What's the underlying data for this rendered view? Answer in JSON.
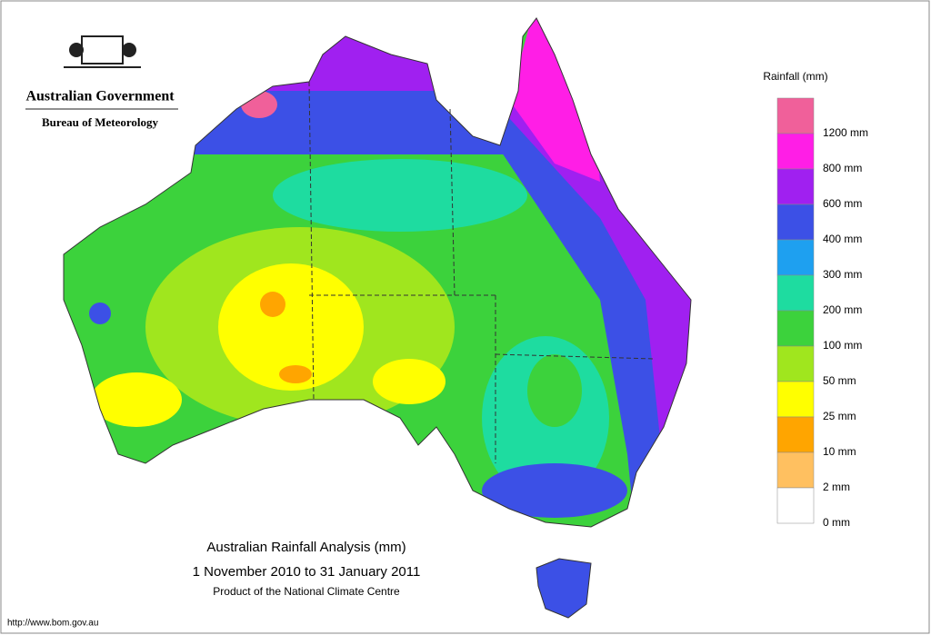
{
  "header": {
    "agency": "Australian Government",
    "bureau": "Bureau of Meteorology"
  },
  "legend": {
    "title": "Rainfall (mm)",
    "colors": [
      "#f0609a",
      "#ff1ee6",
      "#a020f0",
      "#3c50e6",
      "#1ea0f0",
      "#1edca0",
      "#3cd23c",
      "#a0e61e",
      "#ffff00",
      "#ffa500",
      "#ffc060",
      "#ffffff"
    ],
    "labels": [
      "1200 mm",
      "800 mm",
      "600 mm",
      "400 mm",
      "300 mm",
      "200 mm",
      "100 mm",
      "50 mm",
      "25 mm",
      "10 mm",
      "2 mm",
      "0 mm"
    ]
  },
  "title": {
    "line1": "Australian Rainfall Analysis (mm)",
    "line2": "1 November 2010 to 31 January 2011",
    "line3": "Product of the National Climate Centre"
  },
  "footer": {
    "url": "http://www.bom.gov.au"
  }
}
